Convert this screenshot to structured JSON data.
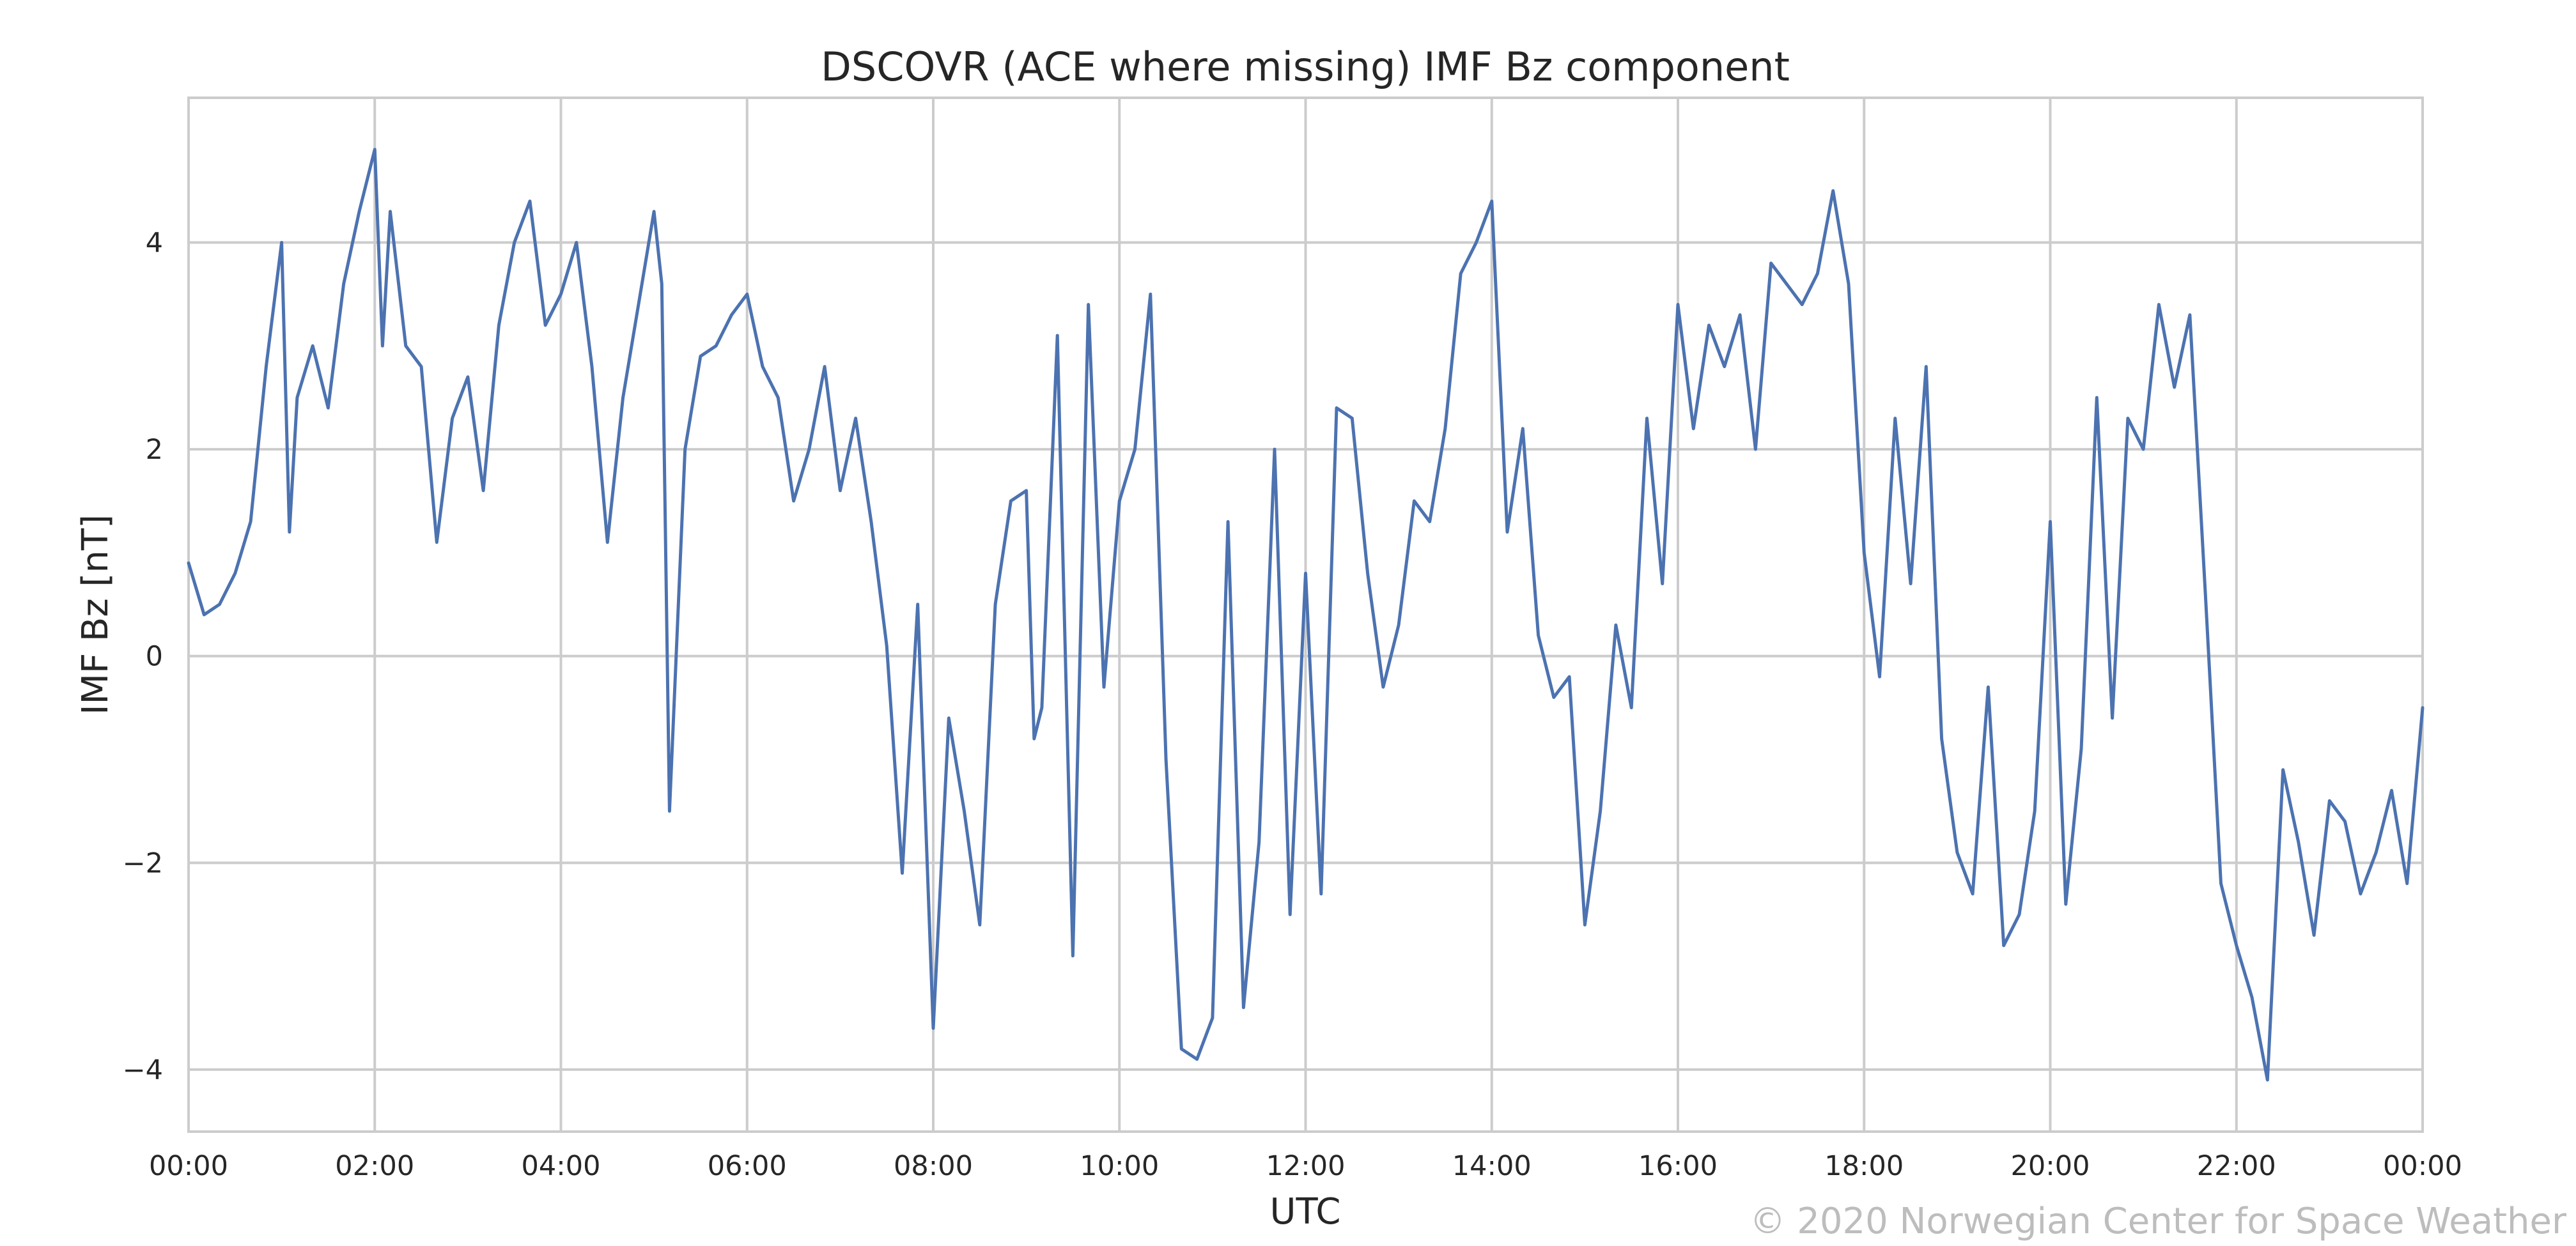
{
  "chart_data": {
    "type": "line",
    "title": "DSCOVR (ACE where missing) IMF Bz component",
    "xlabel": "UTC",
    "ylabel": "IMF Bz [nT]",
    "xlim": [
      "00:00",
      "24:00"
    ],
    "ylim": [
      -4.6,
      5.4
    ],
    "grid": true,
    "x_ticks": [
      "00:00",
      "02:00",
      "04:00",
      "06:00",
      "08:00",
      "10:00",
      "12:00",
      "14:00",
      "16:00",
      "18:00",
      "20:00",
      "22:00",
      "00:00"
    ],
    "y_ticks": [
      -4,
      -2,
      0,
      2,
      4
    ],
    "y_tick_labels": [
      "−4",
      "−2",
      "0",
      "2",
      "4"
    ],
    "series": [
      {
        "color": "#4c72b0",
        "x": [
          "00:00",
          "00:10",
          "00:20",
          "00:30",
          "00:40",
          "00:50",
          "01:00",
          "01:05",
          "01:10",
          "01:20",
          "01:30",
          "01:40",
          "01:50",
          "02:00",
          "02:05",
          "02:10",
          "02:20",
          "02:30",
          "02:40",
          "02:50",
          "03:00",
          "03:10",
          "03:20",
          "03:30",
          "03:40",
          "03:50",
          "04:00",
          "04:10",
          "04:20",
          "04:30",
          "04:40",
          "04:50",
          "05:00",
          "05:05",
          "05:10",
          "05:20",
          "05:30",
          "05:40",
          "05:50",
          "06:00",
          "06:10",
          "06:20",
          "06:30",
          "06:40",
          "06:50",
          "07:00",
          "07:10",
          "07:20",
          "07:30",
          "07:40",
          "07:50",
          "08:00",
          "08:10",
          "08:20",
          "08:30",
          "08:40",
          "08:50",
          "09:00",
          "09:05",
          "09:10",
          "09:20",
          "09:30",
          "09:40",
          "09:50",
          "10:00",
          "10:10",
          "10:20",
          "10:30",
          "10:40",
          "10:50",
          "11:00",
          "11:10",
          "11:20",
          "11:30",
          "11:40",
          "11:50",
          "12:00",
          "12:10",
          "12:20",
          "12:30",
          "12:40",
          "12:50",
          "13:00",
          "13:10",
          "13:20",
          "13:30",
          "13:40",
          "13:50",
          "14:00",
          "14:10",
          "14:20",
          "14:30",
          "14:40",
          "14:50",
          "15:00",
          "15:10",
          "15:20",
          "15:30",
          "15:40",
          "15:50",
          "16:00",
          "16:10",
          "16:20",
          "16:30",
          "16:40",
          "16:50",
          "17:00",
          "17:10",
          "17:20",
          "17:30",
          "17:40",
          "17:50",
          "18:00",
          "18:10",
          "18:20",
          "18:30",
          "18:40",
          "18:50",
          "19:00",
          "19:10",
          "19:20",
          "19:30",
          "19:40",
          "19:50",
          "20:00",
          "20:10",
          "20:20",
          "20:30",
          "20:40",
          "20:50",
          "21:00",
          "21:10",
          "21:20",
          "21:30",
          "21:40",
          "21:50",
          "22:00",
          "22:10",
          "22:20",
          "22:30",
          "22:40",
          "22:50",
          "23:00",
          "23:10",
          "23:20",
          "23:30",
          "23:40",
          "23:50",
          "24:00"
        ],
        "values": [
          0.9,
          0.4,
          0.5,
          0.8,
          1.3,
          2.8,
          4.0,
          1.2,
          2.5,
          3.0,
          2.4,
          3.6,
          4.3,
          4.9,
          3.0,
          4.3,
          3.0,
          2.8,
          1.1,
          2.3,
          2.7,
          1.6,
          3.2,
          4.0,
          4.4,
          3.2,
          3.5,
          4.0,
          2.8,
          1.1,
          2.5,
          3.4,
          4.3,
          3.6,
          -1.5,
          2.0,
          2.9,
          3.0,
          3.3,
          3.5,
          2.8,
          2.5,
          1.5,
          2.0,
          2.8,
          1.6,
          2.3,
          1.3,
          0.1,
          -2.1,
          0.5,
          -3.6,
          -0.6,
          -1.5,
          -2.6,
          0.5,
          1.5,
          1.6,
          -0.8,
          -0.5,
          3.1,
          -2.9,
          3.4,
          -0.3,
          1.5,
          2.0,
          3.5,
          -1.0,
          -3.8,
          -3.9,
          -3.5,
          1.3,
          -3.4,
          -1.8,
          2.0,
          -2.5,
          0.8,
          -2.3,
          2.4,
          2.3,
          0.8,
          -0.3,
          0.3,
          1.5,
          1.3,
          2.2,
          3.7,
          4.0,
          4.4,
          1.2,
          2.2,
          0.2,
          -0.4,
          -0.2,
          -2.6,
          -1.5,
          0.3,
          -0.5,
          2.3,
          0.7,
          3.4,
          2.2,
          3.2,
          2.8,
          3.3,
          2.0,
          3.8,
          3.6,
          3.4,
          3.7,
          4.5,
          3.6,
          1.0,
          -0.2,
          2.3,
          0.7,
          2.8,
          -0.8,
          -1.9,
          -2.3,
          -0.3,
          -2.8,
          -2.5,
          -1.5,
          1.3,
          -2.4,
          -0.9,
          2.5,
          -0.6,
          2.3,
          2.0,
          3.4,
          2.6,
          3.3,
          0.6,
          -2.2,
          -2.8,
          -3.3,
          -4.1,
          -1.1,
          -1.8,
          -2.7,
          -1.4,
          -1.6,
          -2.3,
          -1.9,
          -1.3,
          -2.2,
          -0.5
        ]
      }
    ]
  },
  "watermark": "© 2020 Norwegian Center for Space Weather"
}
